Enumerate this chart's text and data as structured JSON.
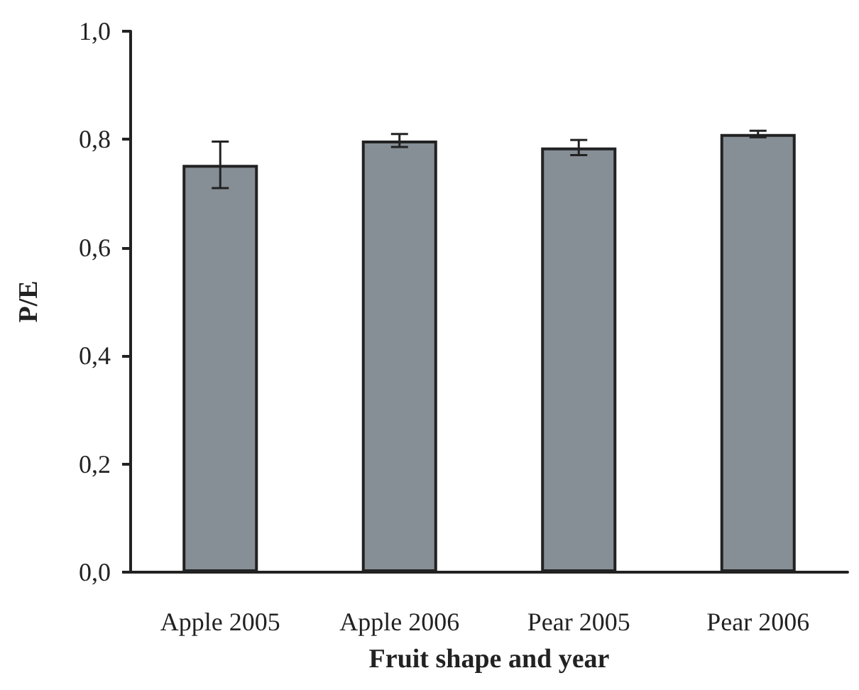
{
  "chart_data": {
    "type": "bar",
    "xlabel": "Fruit shape and year",
    "ylabel": "P/E",
    "categories": [
      "Apple 2005",
      "Apple 2006",
      "Pear 2005",
      "Pear 2006"
    ],
    "values": [
      0.753,
      0.798,
      0.785,
      0.81
    ],
    "errors": [
      0.043,
      0.012,
      0.014,
      0.006
    ],
    "color": "#868e96",
    "ylim": [
      0,
      1
    ],
    "yticks": [
      {
        "value": 0,
        "label": "0,0"
      },
      {
        "value": 0.2,
        "label": "0,2"
      },
      {
        "value": 0.4,
        "label": "0,4"
      },
      {
        "value": 0.6,
        "label": "0,6"
      },
      {
        "value": 0.8,
        "label": "0,8"
      },
      {
        "value": 1,
        "label": "1,0"
      }
    ],
    "grid": false
  }
}
